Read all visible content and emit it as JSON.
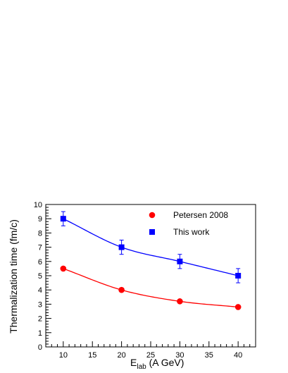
{
  "chart_data": {
    "type": "scatter",
    "title": "",
    "xlabel": "E",
    "xlabel_subscript": "lab",
    "xlabel_unit": " (A GeV)",
    "ylabel": "Thermalization time (fm/c)",
    "xlim": [
      7,
      43
    ],
    "ylim": [
      0,
      10
    ],
    "x_ticks": [
      10,
      15,
      20,
      25,
      30,
      35,
      40
    ],
    "y_ticks": [
      0,
      1,
      2,
      3,
      4,
      5,
      6,
      7,
      8,
      9,
      10
    ],
    "legend_position": "top-right",
    "grid": false,
    "series": [
      {
        "name": "Petersen 2008",
        "marker": "circle",
        "color": "#ff0000",
        "x": [
          10,
          20,
          30,
          40
        ],
        "y": [
          5.5,
          4.0,
          3.2,
          2.8
        ],
        "error": [
          0,
          0,
          0,
          0
        ],
        "fit_curve": true
      },
      {
        "name": "This work",
        "marker": "square",
        "color": "#0000ff",
        "x": [
          10,
          20,
          30,
          40
        ],
        "y": [
          9.0,
          7.0,
          6.0,
          5.0
        ],
        "error": [
          0.5,
          0.5,
          0.5,
          0.5
        ],
        "fit_curve": true
      }
    ]
  }
}
